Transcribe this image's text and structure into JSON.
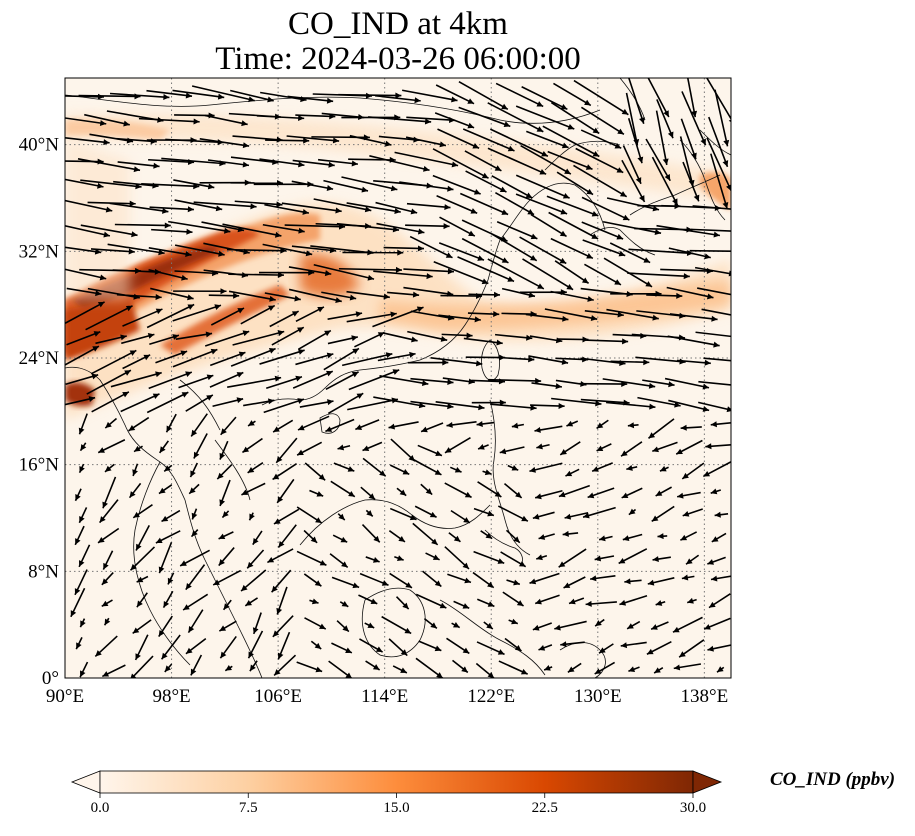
{
  "title": {
    "line1": "CO_IND at 4km",
    "line2": "Time: 2024-03-26 06:00:00"
  },
  "map": {
    "lon_ticks": [
      "90°E",
      "98°E",
      "106°E",
      "114°E",
      "122°E",
      "130°E",
      "138°E"
    ],
    "lat_ticks": [
      "0°",
      "8°N",
      "16°N",
      "24°N",
      "32°N",
      "40°N"
    ],
    "lon_range": [
      90,
      140
    ],
    "lat_range": [
      0,
      45
    ],
    "lon_tick_values": [
      90,
      98,
      106,
      114,
      122,
      130,
      138
    ],
    "lat_tick_values": [
      0,
      8,
      16,
      24,
      32,
      40
    ],
    "gridlines": true
  },
  "colorbar": {
    "label": "CO_IND (ppbv)",
    "ticks": [
      "0.0",
      "7.5",
      "15.0",
      "22.5",
      "30.0"
    ],
    "min": 0,
    "max": 30,
    "colormap": [
      "#fff5eb",
      "#fdd0a2",
      "#fd8d3c",
      "#d94801",
      "#7f2704"
    ],
    "extend": "both"
  }
}
